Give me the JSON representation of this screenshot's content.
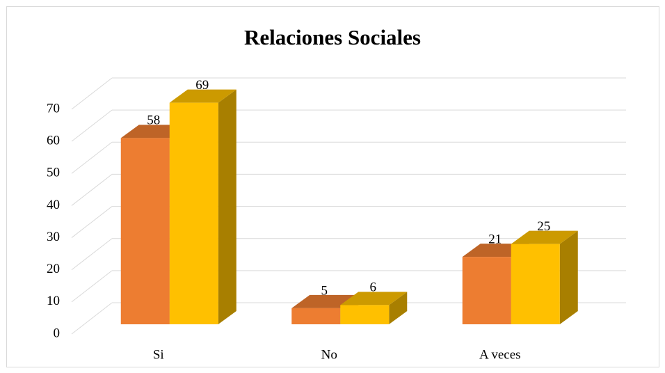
{
  "chart_data": {
    "type": "bar3d",
    "title": "Relaciones Sociales",
    "categories": [
      "Si",
      "No",
      "A veces"
    ],
    "series": [
      {
        "color": "#ED7D31",
        "values": [
          58,
          5,
          21
        ]
      },
      {
        "color": "#FFC000",
        "values": [
          69,
          6,
          25
        ]
      }
    ],
    "ylim": [
      0,
      70
    ],
    "yticks": [
      0,
      10,
      20,
      30,
      40,
      50,
      60,
      70
    ],
    "grid": true
  }
}
